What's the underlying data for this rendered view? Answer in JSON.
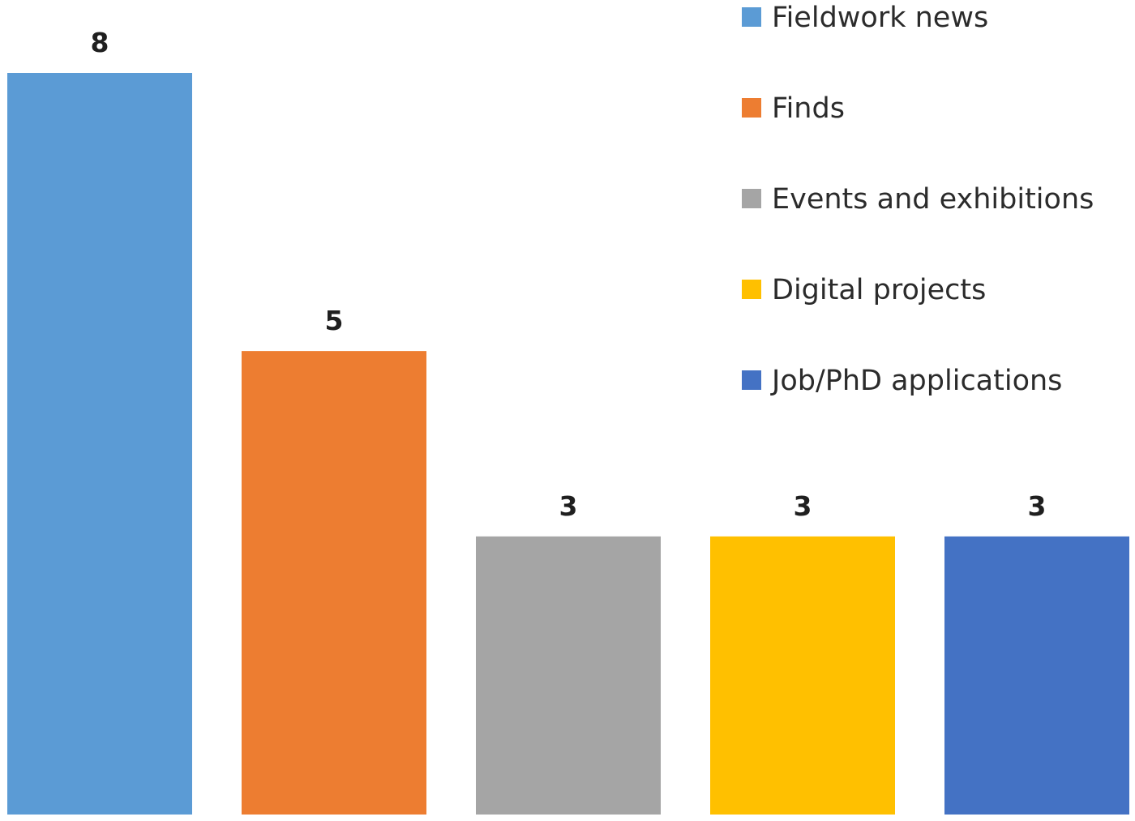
{
  "chart_data": {
    "type": "bar",
    "categories": [
      "Fieldwork news",
      "Finds",
      "Events and exhibitions",
      "Digital projects",
      "Job/PhD applications"
    ],
    "values": [
      8,
      5,
      3,
      3,
      3
    ],
    "colors": [
      "#5b9bd5",
      "#ed7d31",
      "#a5a5a5",
      "#ffc000",
      "#4472c4"
    ],
    "data_labels": [
      "8",
      "5",
      "3",
      "3",
      "3"
    ],
    "ylim": [
      0,
      8
    ],
    "grid": false,
    "axes_visible": false,
    "legend": {
      "position": "top-right",
      "entries": [
        "Fieldwork news",
        "Finds",
        "Events and exhibitions",
        "Digital projects",
        "Job/PhD applications"
      ]
    }
  }
}
